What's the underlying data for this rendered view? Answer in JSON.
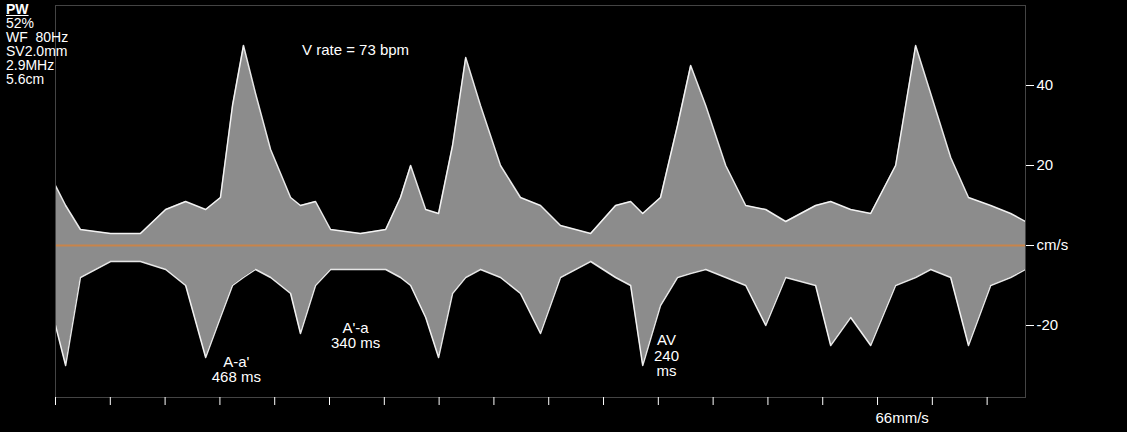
{
  "chart_data": {
    "type": "area",
    "header": [
      "PW",
      "52%",
      "WF  80Hz",
      "SV2.0mm",
      "2.9MHz",
      "5.6cm"
    ],
    "x": [
      0,
      37,
      91,
      201,
      310,
      402,
      475,
      548,
      602,
      646,
      686,
      730,
      785,
      858,
      894,
      949,
      1004,
      1113,
      1205,
      1259,
      1296,
      1351,
      1398,
      1449,
      1497,
      1551,
      1624,
      1697,
      1770,
      1843,
      1953,
      2044,
      2099,
      2143,
      2208,
      2270,
      2318,
      2373,
      2446,
      2519,
      2592,
      2665,
      2774,
      2829,
      2902,
      2975,
      3066,
      3139,
      3194,
      3267,
      3332,
      3413,
      3486,
      3540
    ],
    "series": [
      {
        "color": "#ffffff",
        "values": [
          15,
          10,
          4,
          3,
          3,
          9,
          11,
          9,
          12,
          35,
          50,
          38,
          24,
          12,
          10,
          11,
          4,
          3,
          4,
          12,
          20,
          9,
          8,
          25,
          47,
          35,
          20,
          12,
          10,
          5,
          3,
          10,
          11,
          8,
          12,
          30,
          45,
          35,
          20,
          10,
          9,
          6,
          10,
          11,
          9,
          8,
          20,
          50,
          38,
          22,
          12,
          10,
          8,
          6
        ]
      },
      {
        "color": "#ffffff",
        "values": [
          -20,
          -30,
          -8,
          -4,
          -4,
          -6,
          -10,
          -28,
          -18,
          -10,
          -8,
          -6,
          -8,
          -12,
          -22,
          -10,
          -6,
          -6,
          -6,
          -8,
          -10,
          -18,
          -28,
          -12,
          -8,
          -6,
          -8,
          -12,
          -22,
          -8,
          -4,
          -8,
          -10,
          -30,
          -15,
          -8,
          -7,
          -6,
          -8,
          -10,
          -20,
          -8,
          -10,
          -25,
          -18,
          -25,
          -10,
          -8,
          -6,
          -8,
          -25,
          -10,
          -8,
          -6
        ]
      }
    ],
    "xlim": [
      0,
      3540
    ],
    "xticks": [
      0,
      200,
      400,
      600,
      800,
      1000,
      1200,
      1400,
      1600,
      1800,
      2000,
      2200,
      2400,
      2600,
      2800,
      3000,
      3200,
      3400
    ],
    "ylim": [
      -38,
      60
    ],
    "yticks": [
      40,
      20,
      {
        "value": 0,
        "label": "cm/s"
      },
      -20
    ],
    "tick_labels": "y",
    "annotations": [
      {
        "text": "V rate = 73 bpm",
        "x": 1095,
        "y": 49
      },
      {
        "text": "A-a'\n468 ms",
        "x": 660,
        "y": -31
      },
      {
        "text": "A'-a\n340 ms",
        "x": 1095,
        "y": -22.5
      },
      {
        "text": "AV\n240\nms",
        "x": 2230,
        "y": -27.5
      },
      {
        "text": "66mm/s",
        "x": 3090,
        "y": -43
      }
    ]
  }
}
